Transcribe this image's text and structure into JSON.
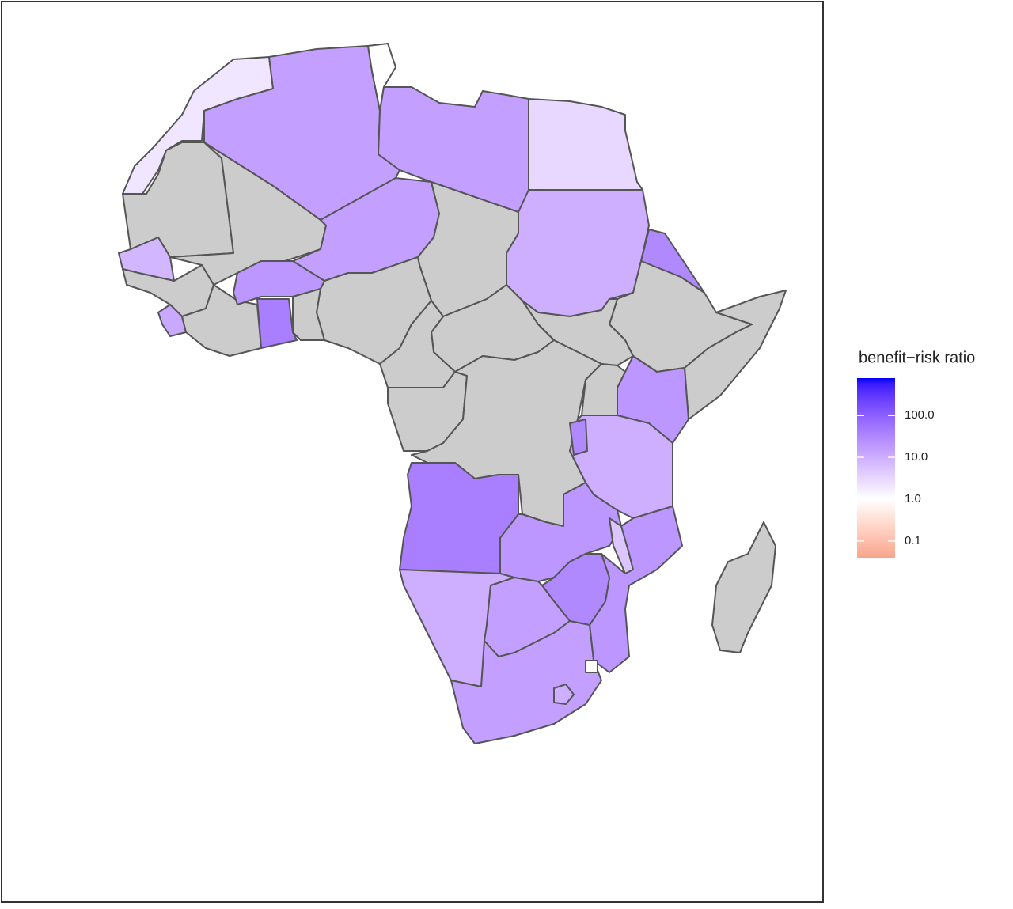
{
  "chart_data": {
    "type": "choropleth",
    "legend_title": "benefit−risk ratio",
    "values": [
      2,
      15,
      1,
      15,
      3,
      null,
      null,
      15,
      null,
      10,
      30,
      null,
      null,
      null,
      20,
      null,
      null,
      null,
      8,
      null,
      12,
      null,
      20,
      40,
      null,
      null,
      null,
      null,
      10,
      30,
      40,
      20,
      5,
      20,
      30,
      10,
      15,
      15,
      10,
      1,
      null
    ],
    "colorlim": [
      0.04,
      780
    ],
    "log_scale": true,
    "colors": {
      "low": "#f8a48c",
      "mid": "#ffffff",
      "high": "#0000ff"
    },
    "na_color": "#cccccc",
    "ticks": [
      {
        "value": 100,
        "label": "100.0"
      },
      {
        "value": 10,
        "label": "10.0"
      },
      {
        "value": 1,
        "label": "1.0"
      },
      {
        "value": 0.1,
        "label": "0.1"
      }
    ],
    "legend": "right"
  }
}
